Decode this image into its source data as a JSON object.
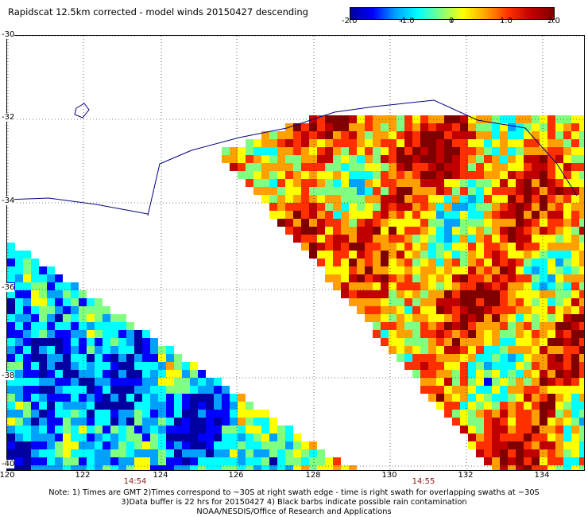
{
  "title": "Rapidscat 12.5km corrected - model winds 20150427 descending",
  "colorbar": {
    "ticks": [
      "-2.0",
      "-1.0",
      "0",
      "1.0",
      "2.0"
    ],
    "colors": [
      "#0000a0",
      "#0000ff",
      "#00a0ff",
      "#00ffff",
      "#80ff80",
      "#ffff00",
      "#ffa000",
      "#ff3000",
      "#c00000",
      "#800000"
    ]
  },
  "map": {
    "lat_labels": [
      "-30",
      "-32",
      "-34",
      "-36",
      "-38",
      "-40"
    ],
    "lon_labels": [
      "120",
      "122",
      "124",
      "126",
      "128",
      "130",
      "132",
      "134"
    ],
    "swath_times": [
      "14:54",
      "14:55"
    ],
    "coastline_color": "#000080",
    "grid_color": "#000000"
  },
  "notes": [
    "Note: 1) Times are GMT 2)Times correspond to ~30S at right swath edge - time is right swath for overlapping swaths at ~30S",
    "3)Data buffer is 22 hrs for 20150427 4) Black barbs indicate possible rain contamination",
    "NOAA/NESDIS/Office of Research and Applications"
  ]
}
